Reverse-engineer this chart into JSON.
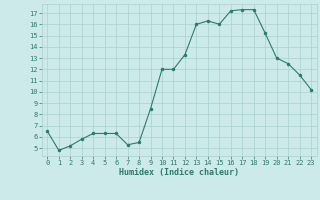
{
  "x": [
    0,
    1,
    2,
    3,
    4,
    5,
    6,
    7,
    8,
    9,
    10,
    11,
    12,
    13,
    14,
    15,
    16,
    17,
    18,
    19,
    20,
    21,
    22,
    23
  ],
  "y": [
    6.5,
    4.8,
    5.2,
    5.8,
    6.3,
    6.3,
    6.3,
    5.3,
    5.5,
    8.5,
    12.0,
    12.0,
    13.3,
    16.0,
    16.3,
    16.0,
    17.2,
    17.3,
    17.3,
    15.2,
    13.0,
    12.5,
    11.5,
    10.2
  ],
  "xlabel": "Humidex (Indice chaleur)",
  "xlim": [
    -0.5,
    23.5
  ],
  "ylim": [
    4.3,
    17.8
  ],
  "yticks": [
    5,
    6,
    7,
    8,
    9,
    10,
    11,
    12,
    13,
    14,
    15,
    16,
    17
  ],
  "xticks": [
    0,
    1,
    2,
    3,
    4,
    5,
    6,
    7,
    8,
    9,
    10,
    11,
    12,
    13,
    14,
    15,
    16,
    17,
    18,
    19,
    20,
    21,
    22,
    23
  ],
  "line_color": "#2d7a6e",
  "marker_color": "#2d7a6e",
  "bg_color": "#cdeaea",
  "grid_color": "#aacfcf"
}
